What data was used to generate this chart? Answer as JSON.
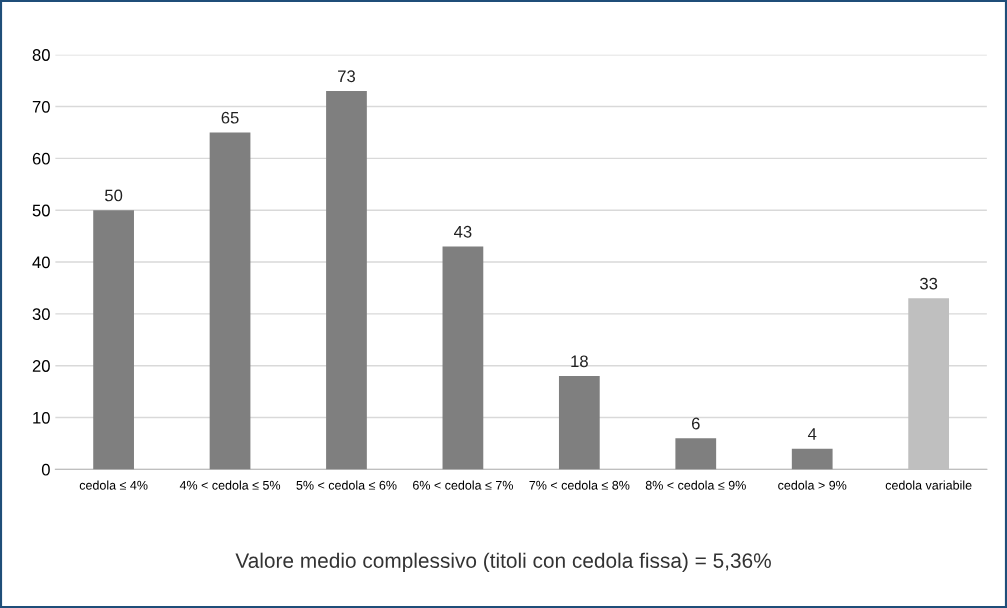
{
  "chart_data": {
    "type": "bar",
    "categories": [
      "cedola ≤ 4%",
      "4% < cedola ≤ 5%",
      "5% < cedola ≤ 6%",
      "6% < cedola ≤ 7%",
      "7% < cedola ≤ 8%",
      "8% < cedola ≤ 9%",
      "cedola > 9%",
      "cedola variabile"
    ],
    "values": [
      50,
      65,
      73,
      43,
      18,
      6,
      4,
      33
    ],
    "colors": [
      "#7f7f7f",
      "#7f7f7f",
      "#7f7f7f",
      "#7f7f7f",
      "#7f7f7f",
      "#7f7f7f",
      "#7f7f7f",
      "#bfbfbf"
    ],
    "ylim": [
      0,
      80
    ],
    "yticks": [
      0,
      10,
      20,
      30,
      40,
      50,
      60,
      70,
      80
    ],
    "grid": "y",
    "data_labels": true,
    "annotations": [
      "Valore medio complessivo (titoli con cedola fissa) = 5,36%"
    ]
  }
}
